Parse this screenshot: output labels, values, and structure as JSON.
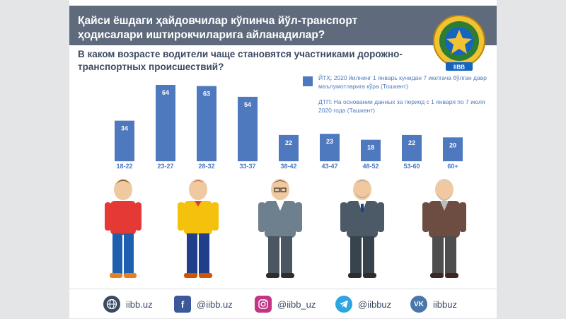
{
  "header": {
    "title": "Қайси ёшдаги ҳайдовчилар кўпинча йўл-транспорт ҳодисалари иштирокчиларига айланадилар?",
    "subtitle": "В каком возрасте водители чаще становятся участниками дорожно-транспортных происшествий?",
    "emblem_text": "IIBB"
  },
  "legend": {
    "note_uz": "ЙТҲ: 2020 йилнинг 1 январь кунидан 7 июлгача бўлган давр маълумотларига кўра (Тошкент)",
    "note_ru": "ДТП: На основании данных за период с 1 января по 7 июля 2020 года (Ташкент)"
  },
  "chart_data": {
    "type": "bar",
    "categories": [
      "18-22",
      "23-27",
      "28-32",
      "33-37",
      "38-42",
      "43-47",
      "48-52",
      "53-60",
      "60+"
    ],
    "values": [
      34,
      64,
      63,
      54,
      22,
      23,
      18,
      22,
      20
    ],
    "ylim": [
      0,
      64
    ],
    "grid": false,
    "legend_position": "top-right",
    "bar_color": "#4f79be",
    "label_color": "#4f79be"
  },
  "footer": {
    "items": [
      {
        "icon": "globe-icon",
        "label": "iibb.uz",
        "color": "#3a4a63"
      },
      {
        "icon": "facebook-icon",
        "label": "@iibb.uz",
        "color": "#3b5998"
      },
      {
        "icon": "instagram-icon",
        "label": "@iibb_uz",
        "color": "#c13584"
      },
      {
        "icon": "telegram-icon",
        "label": "@iibbuz",
        "color": "#2ca5e0"
      },
      {
        "icon": "vk-icon",
        "label": "iibbuz",
        "color": "#4a76a8"
      }
    ]
  },
  "colors": {
    "title_band": "#5f6b7d",
    "subtitle": "#3a4a63",
    "bar": "#4f79be"
  }
}
